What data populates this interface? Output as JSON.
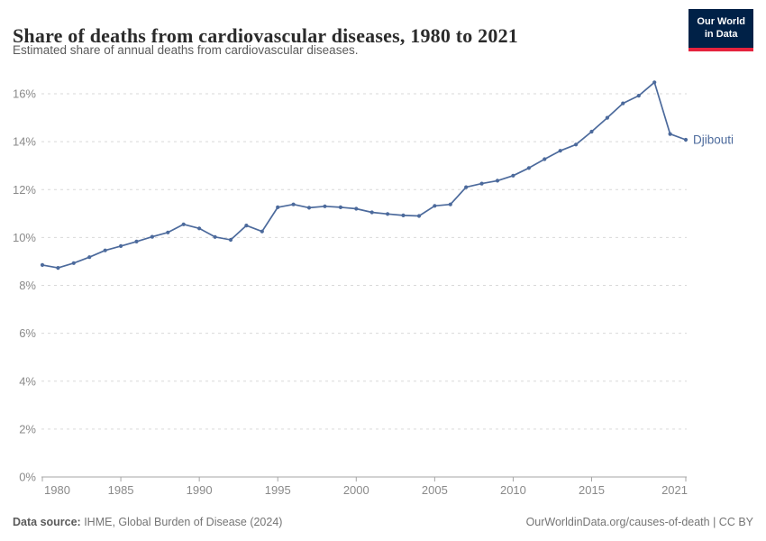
{
  "header": {
    "title": "Share of deaths from cardiovascular diseases, 1980 to 2021",
    "subtitle": "Estimated share of annual deaths from cardiovascular diseases.",
    "logo": {
      "line1": "Our World",
      "line2": "in Data"
    }
  },
  "chart_data": {
    "type": "line",
    "title": "Share of deaths from cardiovascular diseases, 1980 to 2021",
    "xlabel": "",
    "ylabel": "",
    "y_format": "percent",
    "grid": true,
    "legend_position": "end-of-line",
    "xlim": [
      1980,
      2021
    ],
    "ylim": [
      0,
      16
    ],
    "xticks": [
      1980,
      1985,
      1990,
      1995,
      2000,
      2005,
      2010,
      2015,
      2021
    ],
    "yticks": [
      0,
      2,
      4,
      6,
      8,
      10,
      12,
      14,
      16
    ],
    "x": [
      1980,
      1981,
      1982,
      1983,
      1984,
      1985,
      1986,
      1987,
      1988,
      1989,
      1990,
      1991,
      1992,
      1993,
      1994,
      1995,
      1996,
      1997,
      1998,
      1999,
      2000,
      2001,
      2002,
      2003,
      2004,
      2005,
      2006,
      2007,
      2008,
      2009,
      2010,
      2011,
      2012,
      2013,
      2014,
      2015,
      2016,
      2017,
      2018,
      2019,
      2020,
      2021
    ],
    "series": [
      {
        "name": "Djibouti",
        "color": "#4c6a9c",
        "values": [
          8.85,
          8.73,
          8.93,
          9.18,
          9.46,
          9.64,
          9.83,
          10.03,
          10.21,
          10.55,
          10.38,
          10.02,
          9.9,
          10.5,
          10.25,
          11.26,
          11.38,
          11.24,
          11.3,
          11.26,
          11.2,
          11.05,
          10.98,
          10.92,
          10.9,
          11.32,
          11.38,
          12.1,
          12.25,
          12.37,
          12.58,
          12.9,
          13.27,
          13.62,
          13.88,
          14.42,
          15.0,
          15.6,
          15.92,
          16.48,
          14.32,
          14.08
        ]
      }
    ]
  },
  "footer": {
    "source_label": "Data source:",
    "source_text": " IHME, Global Burden of Disease (2024)",
    "credit": "OurWorldinData.org/causes-of-death | CC BY"
  },
  "colors": {
    "line": "#4c6a9c",
    "grid": "#d9d9d9",
    "axis": "#a5a5a5",
    "tick_label": "#8a8a8a",
    "logo_bg": "#002147",
    "logo_accent": "#e5233d"
  }
}
